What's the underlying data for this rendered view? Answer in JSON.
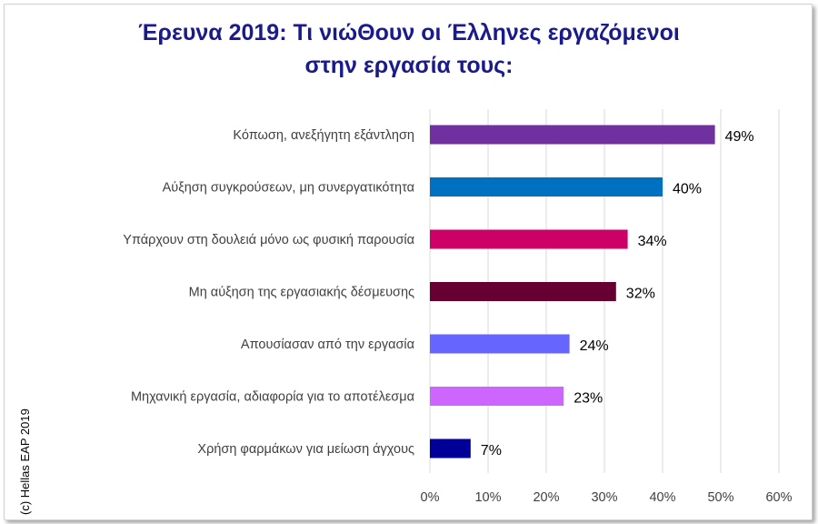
{
  "chart_data": {
    "type": "bar",
    "orientation": "horizontal",
    "title_line1": "Έρευνα 2019:  Τι νιώΘουν οι  Έλληνες εργαζόμενοι",
    "title_line2": "στην εργασία τους:",
    "credit": "(c) Hellas EAP 2019",
    "categories": [
      "Κόπωση, ανεξήγητη εξάντληση",
      "Αύξηση συγκρούσεων, μη συνεργατικότητα",
      "Υπάρχουν στη δουλειά μόνο ως φυσική παρουσία",
      "Μη αύξηση της εργασιακής δέσμευσης",
      "Απουσίασαν από την εργασία",
      "Μηχανική εργασία, αδιαφορία για το αποτέλεσμα",
      "Χρήση φαρμάκων για μείωση άγχους"
    ],
    "values": [
      49,
      40,
      34,
      32,
      24,
      23,
      7
    ],
    "value_labels": [
      "49%",
      "40%",
      "34%",
      "32%",
      "24%",
      "23%",
      "7%"
    ],
    "colors": [
      "#7030a0",
      "#0070c0",
      "#cc0066",
      "#660033",
      "#6666ff",
      "#cc66ff",
      "#000099"
    ],
    "xticks": [
      0,
      10,
      20,
      30,
      40,
      50,
      60
    ],
    "xtick_labels": [
      "0%",
      "10%",
      "20%",
      "30%",
      "40%",
      "50%",
      "60%"
    ],
    "xlim": [
      0,
      60
    ],
    "grid": "vertical gridlines"
  }
}
